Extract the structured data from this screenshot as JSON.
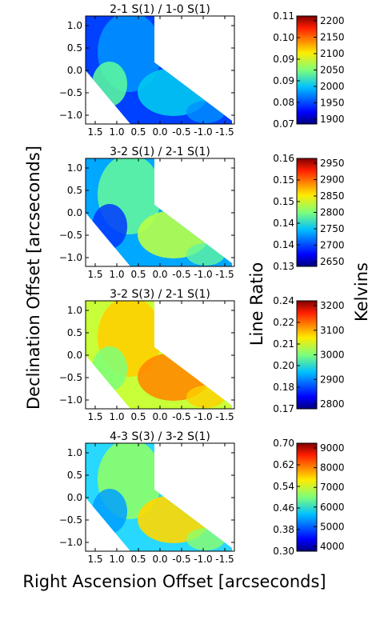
{
  "figure": {
    "ylabel": "Declination Offset [arcseconds]",
    "xlabel": "Right Ascension Offset [arcseconds]",
    "colorbar_left_label": "Line Ratio",
    "colorbar_right_label": "Kelvins"
  },
  "chart_data": [
    {
      "type": "heatmap",
      "title": "2-1 S(1) / 1-0 S(1)",
      "x_ticks": [
        "1.5",
        "1.0",
        "0.5",
        "0.0",
        "-0.5",
        "-1.0",
        "-1.5"
      ],
      "y_ticks": [
        "1.0",
        "0.5",
        "0.0",
        "−0.5",
        "−1.0"
      ],
      "ratio_ticks": [
        "0.11",
        "0.10",
        "0.09",
        "0.09",
        "0.08",
        "0.07"
      ],
      "kelvin_ticks": [
        "2200",
        "2150",
        "2100",
        "2050",
        "2000",
        "1950",
        "1900"
      ],
      "ratio_range": [
        0.07,
        0.11
      ],
      "kelvin_range": [
        1900,
        2200
      ]
    },
    {
      "type": "heatmap",
      "title": "3-2 S(1) / 2-1 S(1)",
      "x_ticks": [
        "1.5",
        "1.0",
        "0.5",
        "0.0",
        "-0.5",
        "-1.0",
        "-1.5"
      ],
      "y_ticks": [
        "1.0",
        "0.5",
        "0.0",
        "−0.5",
        "−1.0"
      ],
      "ratio_ticks": [
        "0.16",
        "0.15",
        "0.15",
        "0.14",
        "0.14",
        "0.13"
      ],
      "kelvin_ticks": [
        "2950",
        "2900",
        "2850",
        "2800",
        "2750",
        "2700",
        "2650"
      ],
      "ratio_range": [
        0.13,
        0.165
      ],
      "kelvin_range": [
        2630,
        2950
      ]
    },
    {
      "type": "heatmap",
      "title": "3-2 S(3) / 2-1 S(1)",
      "x_ticks": [
        "1.5",
        "1.0",
        "0.5",
        "0.0",
        "-0.5",
        "-1.0",
        "-1.5"
      ],
      "y_ticks": [
        "1.0",
        "0.5",
        "0.0",
        "−0.5",
        "−1.0"
      ],
      "ratio_ticks": [
        "0.24",
        "0.22",
        "0.21",
        "0.20",
        "0.18",
        "0.17"
      ],
      "kelvin_ticks": [
        "3200",
        "3100",
        "3000",
        "2900",
        "2800"
      ],
      "ratio_range": [
        0.17,
        0.245
      ],
      "kelvin_range": [
        2750,
        3270
      ]
    },
    {
      "type": "heatmap",
      "title": "4-3 S(3) / 3-2 S(1)",
      "x_ticks": [
        "1.5",
        "1.0",
        "0.5",
        "0.0",
        "-0.5",
        "-1.0",
        "-1.5"
      ],
      "y_ticks": [
        "1.0",
        "0.5",
        "0.0",
        "−0.5",
        "−1.0"
      ],
      "ratio_ticks": [
        "0.70",
        "0.62",
        "0.54",
        "0.46",
        "0.38",
        "0.30"
      ],
      "kelvin_ticks": [
        "9000",
        "8000",
        "7000",
        "6000",
        "5000",
        "4000"
      ],
      "ratio_range": [
        0.3,
        0.72
      ],
      "kelvin_range": [
        3800,
        9200
      ]
    }
  ]
}
